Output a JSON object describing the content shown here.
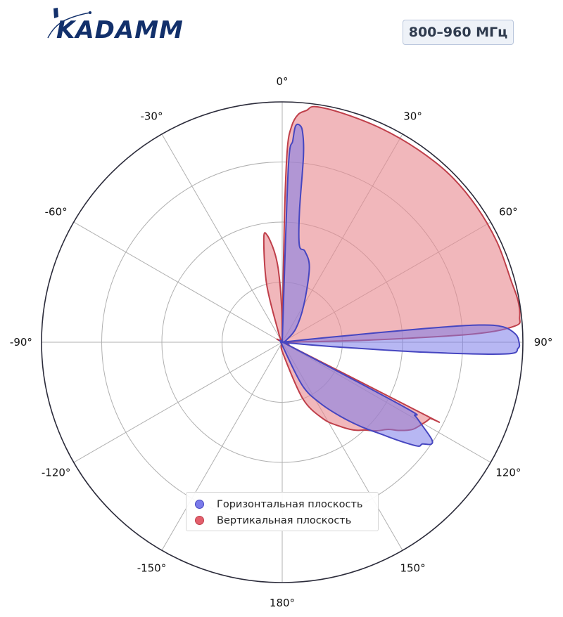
{
  "brand": {
    "name": "KADAMM"
  },
  "band_label": "800–960 МГц",
  "colors": {
    "horizontal_fill": "#7b7bea",
    "horizontal_edge": "#4646c0",
    "vertical_fill": "#e98a92",
    "vertical_edge": "#bf3f4a",
    "logo": "#12306b"
  },
  "chart_data": {
    "type": "polar",
    "theta_zero": "top",
    "theta_direction": "clockwise",
    "theta_ticks": [
      0,
      30,
      60,
      90,
      120,
      150,
      180,
      -150,
      -120,
      -90,
      -60,
      -30
    ],
    "theta_tick_labels": [
      "0°",
      "30°",
      "60°",
      "90°",
      "120°",
      "150°",
      "180°",
      "-150°",
      "-120°",
      "-90°",
      "-60°",
      "-30°"
    ],
    "r_range": [
      0,
      1
    ],
    "r_gridlines": [
      0.25,
      0.5,
      0.75,
      1.0
    ],
    "grid": true,
    "legend_position": "bottom-center",
    "series": [
      {
        "name": "Горизонтальная плоскость",
        "points": [
          [
            0,
            0
          ],
          [
            2,
            0.72
          ],
          [
            3,
            0.84
          ],
          [
            3.5,
            0.9
          ],
          [
            4.5,
            0.907
          ],
          [
            5.5,
            0.88
          ],
          [
            6.5,
            0.78
          ],
          [
            7.5,
            0.55
          ],
          [
            10,
            0.41
          ],
          [
            14,
            0.39
          ],
          [
            20,
            0.33
          ],
          [
            30,
            0.18
          ],
          [
            45,
            0.08
          ],
          [
            62,
            0.02
          ],
          [
            75,
            0.005
          ],
          [
            82,
            0.01
          ],
          [
            84,
            0.2
          ],
          [
            84.5,
            0.6
          ],
          [
            85,
            0.82
          ],
          [
            86,
            0.92
          ],
          [
            88,
            0.97
          ],
          [
            90,
            0.984
          ],
          [
            91.5,
            0.98
          ],
          [
            93,
            0.93
          ],
          [
            94,
            0.6
          ],
          [
            95,
            0.2
          ],
          [
            97,
            0.02
          ],
          [
            100,
            0.01
          ],
          [
            110,
            0.02
          ],
          [
            115,
            0.03
          ],
          [
            118,
            0.58
          ],
          [
            119,
            0.63
          ],
          [
            120.5,
            0.67
          ],
          [
            123,
            0.74
          ],
          [
            124.5,
            0.75
          ],
          [
            126,
            0.72
          ],
          [
            127.5,
            0.71
          ],
          [
            130,
            0.64
          ],
          [
            133,
            0.56
          ],
          [
            137,
            0.48
          ],
          [
            142,
            0.39
          ],
          [
            148,
            0.3
          ],
          [
            155,
            0.2
          ],
          [
            170,
            0.02
          ],
          [
            180,
            0
          ],
          [
            190,
            0
          ],
          [
            360,
            0
          ]
        ]
      },
      {
        "name": "Вертикальная плоскость",
        "points": [
          [
            0,
            0
          ],
          [
            1,
            0.5
          ],
          [
            1.5,
            0.8
          ],
          [
            2.5,
            0.9
          ],
          [
            4,
            0.95
          ],
          [
            6,
            0.97
          ],
          [
            8,
            0.99
          ],
          [
            15,
            0.985
          ],
          [
            25,
            0.98
          ],
          [
            35,
            0.98
          ],
          [
            45,
            0.985
          ],
          [
            55,
            0.985
          ],
          [
            65,
            0.985
          ],
          [
            75,
            0.985
          ],
          [
            80,
            0.995
          ],
          [
            84,
            0.992
          ],
          [
            86,
            0.97
          ],
          [
            87.5,
            0.8
          ],
          [
            88.5,
            0.4
          ],
          [
            89,
            0.1
          ],
          [
            90,
            0.01
          ],
          [
            95,
            0.01
          ],
          [
            100,
            0.01
          ],
          [
            110,
            0.03
          ],
          [
            115,
            0.02
          ],
          [
            117,
            0.68
          ],
          [
            117.5,
            0.69
          ],
          [
            121,
            0.67
          ],
          [
            124,
            0.65
          ],
          [
            127,
            0.61
          ],
          [
            129.5,
            0.57
          ],
          [
            133,
            0.54
          ],
          [
            137,
            0.5
          ],
          [
            141,
            0.47
          ],
          [
            146,
            0.42
          ],
          [
            152,
            0.36
          ],
          [
            160,
            0.25
          ],
          [
            175,
            0.05
          ],
          [
            200,
            0.01
          ],
          [
            330,
            0.01
          ],
          [
            340,
            0.05
          ],
          [
            345,
            0.25
          ],
          [
            350,
            0.44
          ],
          [
            352,
            0.45
          ],
          [
            355,
            0.38
          ],
          [
            357,
            0.3
          ],
          [
            359,
            0.15
          ],
          [
            360,
            0
          ]
        ]
      }
    ]
  }
}
